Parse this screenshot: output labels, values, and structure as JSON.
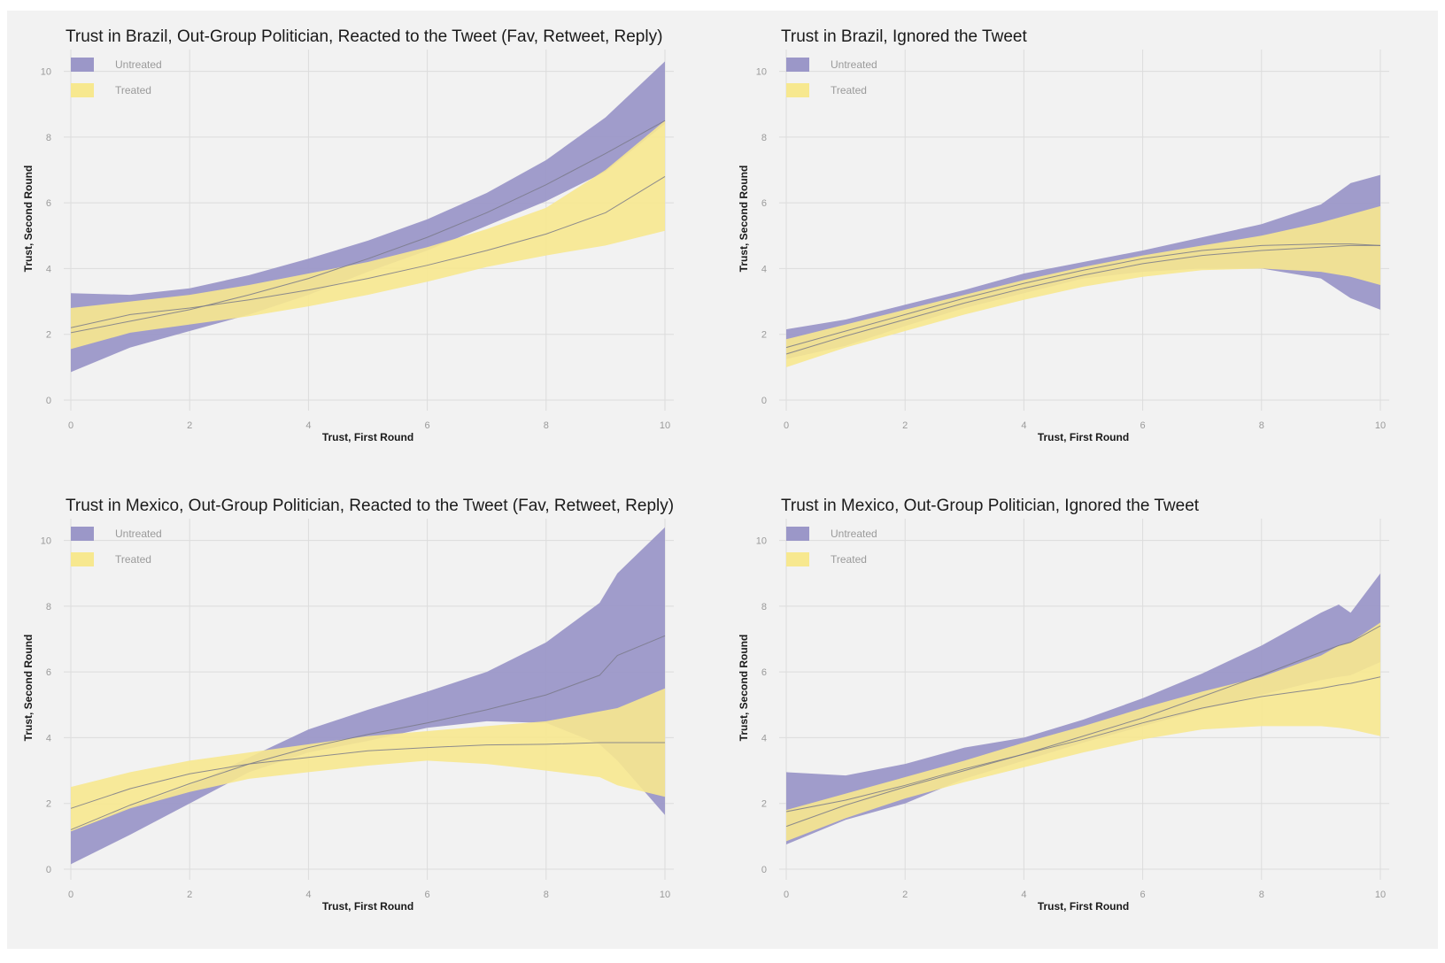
{
  "legend_labels": [
    "Untreated",
    "Treated"
  ],
  "colors": {
    "untreated": "#9b97c8",
    "treated": "#f7e88f",
    "line": "#7a7a8a",
    "grid": "#dcdcdc",
    "background": "#f2f2f2"
  },
  "chart_data": [
    {
      "type": "area",
      "title": "Trust in Brazil, Out-Group Politician, Reacted to the Tweet (Fav, Retweet, Reply)",
      "xlabel": "Trust, First Round",
      "ylabel": "Trust, Second Round",
      "xlim": [
        0,
        10
      ],
      "ylim": [
        0,
        10
      ],
      "xticks": [
        0,
        2,
        4,
        6,
        8,
        10
      ],
      "yticks": [
        0,
        2,
        4,
        6,
        8,
        10
      ],
      "grid": true,
      "legend": "top-left",
      "x": [
        0,
        1,
        2,
        3,
        4,
        5,
        6,
        7,
        8,
        9,
        10
      ],
      "series": [
        {
          "name": "Untreated",
          "fit": [
            2.05,
            2.4,
            2.75,
            3.2,
            3.7,
            4.3,
            4.95,
            5.7,
            6.55,
            7.5,
            8.5
          ],
          "lower": [
            0.85,
            1.6,
            2.1,
            2.6,
            3.2,
            3.9,
            4.55,
            5.3,
            6.05,
            6.95,
            8.4
          ],
          "upper": [
            3.25,
            3.2,
            3.4,
            3.8,
            4.3,
            4.85,
            5.5,
            6.3,
            7.3,
            8.6,
            10.3
          ]
        },
        {
          "name": "Treated",
          "fit": [
            2.2,
            2.6,
            2.8,
            3.05,
            3.35,
            3.7,
            4.1,
            4.55,
            5.05,
            5.7,
            6.8
          ],
          "lower": [
            1.55,
            2.05,
            2.3,
            2.55,
            2.85,
            3.2,
            3.6,
            4.05,
            4.4,
            4.7,
            5.15
          ],
          "upper": [
            2.8,
            3.0,
            3.2,
            3.5,
            3.85,
            4.2,
            4.65,
            5.2,
            5.85,
            7.0,
            8.5
          ]
        }
      ]
    },
    {
      "type": "area",
      "title": "Trust in Brazil, Ignored the Tweet",
      "xlabel": "Trust, First Round",
      "ylabel": "Trust, Second Round",
      "xlim": [
        0,
        10
      ],
      "ylim": [
        0,
        10
      ],
      "xticks": [
        0,
        2,
        4,
        6,
        8,
        10
      ],
      "yticks": [
        0,
        2,
        4,
        6,
        8,
        10
      ],
      "grid": true,
      "legend": "top-left",
      "x": [
        0,
        1,
        2,
        3,
        4,
        5,
        6,
        7,
        8,
        9,
        9.5,
        10
      ],
      "series": [
        {
          "name": "Untreated",
          "fit": [
            1.6,
            2.1,
            2.6,
            3.1,
            3.55,
            3.95,
            4.3,
            4.55,
            4.7,
            4.75,
            4.75,
            4.7
          ],
          "lower": [
            1.25,
            1.65,
            2.25,
            2.8,
            3.25,
            3.7,
            3.9,
            4.0,
            4.0,
            3.7,
            3.1,
            2.75
          ],
          "upper": [
            2.15,
            2.45,
            2.9,
            3.35,
            3.85,
            4.2,
            4.55,
            4.95,
            5.35,
            5.95,
            6.6,
            6.85
          ]
        },
        {
          "name": "Treated",
          "fit": [
            1.4,
            1.95,
            2.45,
            2.95,
            3.4,
            3.8,
            4.15,
            4.4,
            4.55,
            4.65,
            4.7,
            4.7
          ],
          "lower": [
            1.0,
            1.6,
            2.1,
            2.6,
            3.05,
            3.45,
            3.75,
            3.95,
            4.0,
            3.9,
            3.75,
            3.5
          ],
          "upper": [
            1.85,
            2.3,
            2.75,
            3.2,
            3.65,
            4.05,
            4.4,
            4.7,
            5.0,
            5.4,
            5.65,
            5.9
          ]
        }
      ]
    },
    {
      "type": "area",
      "title": "Trust in Mexico, Out-Group Politician, Reacted to the Tweet (Fav, Retweet, Reply)",
      "xlabel": "Trust, First Round",
      "ylabel": "Trust, Second Round",
      "xlim": [
        0,
        10
      ],
      "ylim": [
        0,
        10
      ],
      "xticks": [
        0,
        2,
        4,
        6,
        8,
        10
      ],
      "yticks": [
        0,
        2,
        4,
        6,
        8,
        10
      ],
      "grid": true,
      "legend": "top-left",
      "x": [
        0,
        1,
        2,
        3,
        4,
        5,
        6,
        7,
        8,
        8.9,
        9.2,
        10
      ],
      "series": [
        {
          "name": "Untreated",
          "fit": [
            1.2,
            1.95,
            2.6,
            3.2,
            3.7,
            4.1,
            4.45,
            4.85,
            5.3,
            5.9,
            6.5,
            7.1
          ],
          "lower": [
            0.15,
            1.05,
            2.0,
            2.95,
            3.55,
            3.9,
            4.3,
            4.5,
            4.45,
            3.8,
            3.3,
            1.65
          ],
          "upper": [
            1.15,
            1.9,
            2.55,
            3.4,
            4.25,
            4.85,
            5.4,
            6.0,
            6.9,
            8.1,
            9.0,
            10.4
          ]
        },
        {
          "name": "Treated",
          "fit": [
            1.85,
            2.45,
            2.9,
            3.2,
            3.4,
            3.6,
            3.7,
            3.78,
            3.8,
            3.85,
            3.85,
            3.85
          ],
          "lower": [
            1.15,
            1.85,
            2.35,
            2.75,
            2.95,
            3.15,
            3.3,
            3.2,
            3.0,
            2.8,
            2.55,
            2.2
          ],
          "upper": [
            2.5,
            2.95,
            3.3,
            3.55,
            3.8,
            4.05,
            4.2,
            4.35,
            4.5,
            4.8,
            4.9,
            5.5
          ]
        }
      ]
    },
    {
      "type": "area",
      "title": "Trust in Mexico, Out-Group Politician, Ignored the Tweet",
      "xlabel": "Trust, First Round",
      "ylabel": "Trust, Second Round",
      "xlim": [
        0,
        10
      ],
      "ylim": [
        0,
        10
      ],
      "xticks": [
        0,
        2,
        4,
        6,
        8,
        10
      ],
      "yticks": [
        0,
        2,
        4,
        6,
        8,
        10
      ],
      "grid": true,
      "legend": "top-left",
      "x": [
        0,
        1,
        2,
        3,
        4,
        5,
        6,
        7,
        8,
        9,
        9.3,
        9.5,
        10
      ],
      "series": [
        {
          "name": "Untreated",
          "fit": [
            1.75,
            2.1,
            2.55,
            3.05,
            3.5,
            4.05,
            4.6,
            5.25,
            5.9,
            6.6,
            6.8,
            6.9,
            7.4
          ],
          "lower": [
            0.75,
            1.5,
            2.0,
            2.75,
            3.3,
            3.85,
            4.35,
            4.85,
            5.3,
            5.75,
            5.85,
            5.9,
            6.3
          ],
          "upper": [
            2.95,
            2.85,
            3.2,
            3.7,
            4.0,
            4.55,
            5.2,
            5.95,
            6.8,
            7.8,
            8.05,
            7.8,
            9.0
          ]
        },
        {
          "name": "Treated",
          "fit": [
            1.3,
            1.95,
            2.5,
            3.0,
            3.5,
            3.95,
            4.45,
            4.9,
            5.25,
            5.5,
            5.6,
            5.65,
            5.85
          ],
          "lower": [
            0.85,
            1.55,
            2.15,
            2.65,
            3.1,
            3.55,
            3.95,
            4.25,
            4.35,
            4.35,
            4.3,
            4.25,
            4.05
          ],
          "upper": [
            1.8,
            2.3,
            2.8,
            3.3,
            3.85,
            4.35,
            4.9,
            5.4,
            5.85,
            6.5,
            6.8,
            6.9,
            7.5
          ]
        }
      ]
    }
  ]
}
